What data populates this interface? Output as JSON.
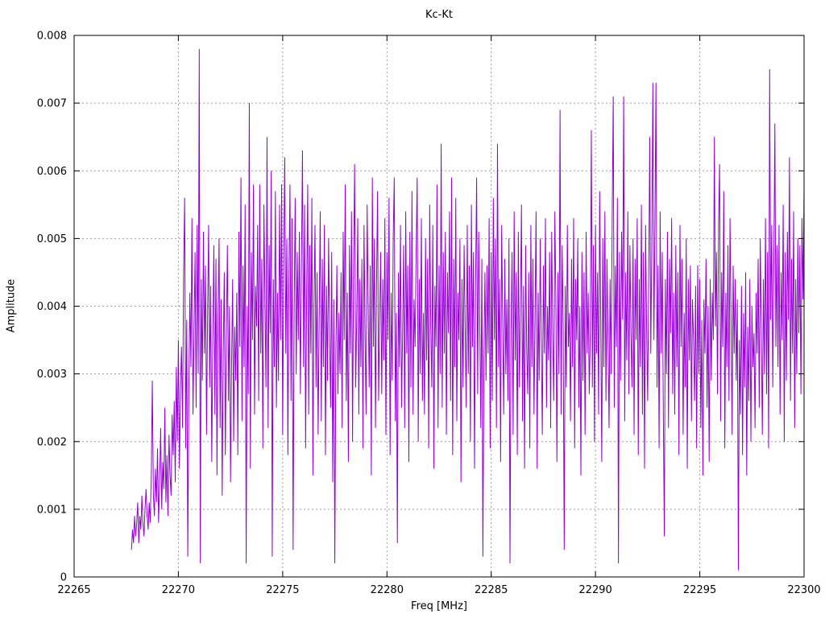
{
  "page": {
    "background": "#ffffff"
  },
  "chart_data": {
    "type": "line",
    "title": "Kc-Kt",
    "xlabel": "Freq [MHz]",
    "ylabel": "Amplitude",
    "xlim": [
      22265,
      22300
    ],
    "ylim": [
      0,
      0.008
    ],
    "x_ticks": [
      22265,
      22270,
      22275,
      22280,
      22285,
      22290,
      22295,
      22300
    ],
    "x_tick_labels": [
      "22265",
      "22270",
      "22275",
      "22280",
      "22285",
      "22290",
      "22295",
      "22300"
    ],
    "y_ticks": [
      0,
      0.001,
      0.002,
      0.003,
      0.004,
      0.005,
      0.006,
      0.007,
      0.008
    ],
    "y_tick_labels": [
      "0",
      "0.001",
      "0.002",
      "0.003",
      "0.004",
      "0.005",
      "0.006",
      "0.007",
      "0.008"
    ],
    "grid": "dotted",
    "legend": "none",
    "line_color": "#9400D3",
    "grid_color": "#9c9c9c",
    "axis_color": "#000000",
    "series": [
      {
        "name": "Kc-Kt",
        "x_start": 22267.75,
        "x_step": 0.05,
        "y_scale": 0.0001,
        "y": [
          4,
          7,
          5,
          9,
          6,
          8,
          11,
          5,
          9,
          7,
          12,
          8,
          6,
          10,
          13,
          9,
          7,
          11,
          8,
          15,
          29,
          12,
          9,
          16,
          11,
          19,
          8,
          14,
          22,
          10,
          17,
          13,
          25,
          11,
          18,
          9,
          21,
          15,
          12,
          24,
          18,
          26,
          14,
          31,
          20,
          35,
          16,
          28,
          34,
          22,
          45,
          56,
          19,
          38,
          3,
          27,
          42,
          31,
          53,
          24,
          36,
          48,
          25,
          52,
          30,
          78,
          2,
          44,
          29,
          51,
          33,
          46,
          21,
          39,
          52,
          28,
          43,
          17,
          35,
          49,
          24,
          47,
          15,
          38,
          50,
          22,
          41,
          12,
          33,
          45,
          18,
          36,
          49,
          26,
          40,
          14,
          31,
          44,
          20,
          37,
          29,
          42,
          18,
          51,
          34,
          59,
          23,
          46,
          31,
          55,
          2,
          40,
          27,
          70,
          16,
          48,
          35,
          58,
          24,
          43,
          37,
          52,
          26,
          58,
          33,
          47,
          19,
          55,
          41,
          28,
          65,
          22,
          49,
          36,
          60,
          3,
          44,
          31,
          57,
          25,
          42,
          29,
          55,
          35,
          58,
          21,
          47,
          62,
          33,
          50,
          18,
          44,
          58,
          26,
          53,
          4,
          39,
          56,
          30,
          48,
          35,
          51,
          27,
          46,
          63,
          31,
          55,
          19,
          42,
          58,
          24,
          49,
          33,
          56,
          15,
          40,
          52,
          28,
          45,
          21,
          38,
          54,
          23,
          47,
          31,
          52,
          18,
          43,
          29,
          50,
          36,
          25,
          48,
          14,
          41,
          2,
          33,
          46,
          27,
          39,
          30,
          45,
          22,
          51,
          35,
          58,
          26,
          42,
          17,
          49,
          33,
          54,
          20,
          46,
          61,
          28,
          38,
          53,
          24,
          44,
          31,
          47,
          19,
          52,
          36,
          24,
          55,
          40,
          28,
          46,
          15,
          59,
          34,
          50,
          22,
          43,
          57,
          26,
          38,
          48,
          27,
          44,
          32,
          53,
          21,
          48,
          35,
          56,
          18,
          42,
          29,
          50,
          59,
          23,
          39,
          5,
          45,
          31,
          52,
          25,
          36,
          49,
          22,
          54,
          33,
          46,
          17,
          51,
          28,
          57,
          24,
          41,
          34,
          48,
          59,
          20,
          44,
          30,
          53,
          26,
          39,
          24,
          50,
          32,
          47,
          19,
          55,
          37,
          28,
          52,
          16,
          43,
          34,
          58,
          22,
          46,
          30,
          64,
          25,
          48,
          33,
          51,
          21,
          45,
          36,
          54,
          26,
          59,
          18,
          47,
          31,
          56,
          23,
          42,
          35,
          50,
          14,
          44,
          28,
          49,
          37,
          25,
          52,
          30,
          46,
          20,
          55,
          34,
          48,
          16,
          43,
          59,
          27,
          51,
          38,
          22,
          47,
          3,
          32,
          45,
          29,
          46,
          33,
          53,
          19,
          48,
          26,
          56,
          35,
          50,
          22,
          64,
          31,
          44,
          17,
          52,
          38,
          24,
          47,
          30,
          41,
          26,
          50,
          2,
          36,
          48,
          21,
          54,
          32,
          45,
          18,
          51,
          28,
          39,
          55,
          23,
          43,
          16,
          49,
          34,
          27,
          45,
          19,
          52,
          31,
          47,
          24,
          38,
          54,
          16,
          42,
          29,
          50,
          35,
          21,
          46,
          33,
          53,
          25,
          40,
          32,
          48,
          22,
          51,
          36,
          26,
          54,
          41,
          17,
          45,
          30,
          69,
          24,
          49,
          37,
          4,
          43,
          28,
          52,
          34,
          39,
          23,
          47,
          31,
          53,
          19,
          44,
          35,
          50,
          25,
          40,
          15,
          48,
          29,
          45,
          21,
          51,
          33,
          42,
          27,
          36,
          66,
          28,
          49,
          20,
          52,
          33,
          45,
          24,
          57,
          38,
          17,
          50,
          31,
          54,
          26,
          47,
          35,
          22,
          44,
          30,
          53,
          71,
          25,
          46,
          34,
          56,
          2,
          48,
          29,
          51,
          38,
          71,
          23,
          45,
          32,
          54,
          27,
          49,
          36,
          28,
          50,
          21,
          47,
          35,
          53,
          18,
          44,
          31,
          55,
          24,
          48,
          16,
          52,
          37,
          26,
          43,
          65,
          33,
          49,
          73,
          35,
          52,
          73,
          28,
          46,
          19,
          54,
          33,
          48,
          25,
          6,
          44,
          30,
          51,
          22,
          47,
          36,
          53,
          27,
          42,
          24,
          49,
          31,
          45,
          18,
          52,
          34,
          47,
          21,
          39,
          28,
          50,
          16,
          44,
          32,
          46,
          23,
          41,
          35,
          26,
          43,
          19,
          46,
          30,
          44,
          22,
          38,
          15,
          41,
          33,
          47,
          25,
          40,
          17,
          44,
          29,
          42,
          35,
          65,
          37,
          48,
          27,
          52,
          61,
          23,
          45,
          34,
          57,
          19,
          42,
          31,
          49,
          26,
          53,
          38,
          21,
          46,
          33,
          44,
          29,
          41,
          1,
          35,
          24,
          43,
          18,
          39,
          28,
          45,
          15,
          37,
          26,
          44,
          20,
          40,
          31,
          36,
          22,
          42,
          33,
          47,
          25,
          50,
          36,
          21,
          44,
          30,
          53,
          27,
          48,
          19,
          75,
          38,
          52,
          28,
          46,
          67,
          34,
          49,
          31,
          52,
          24,
          45,
          35,
          55,
          20,
          48,
          29,
          51,
          38,
          62,
          26,
          47,
          33,
          54,
          22,
          44,
          30,
          50,
          36,
          49,
          27,
          53,
          41,
          57
        ]
      }
    ]
  }
}
